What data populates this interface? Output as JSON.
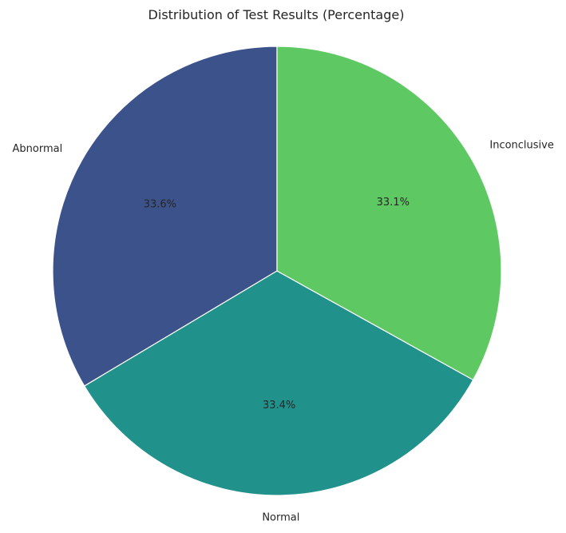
{
  "chart_data": {
    "type": "pie",
    "title": "Distribution of Test Results (Percentage)",
    "categories": [
      "Abnormal",
      "Normal",
      "Inconclusive"
    ],
    "values": [
      33.6,
      33.4,
      33.1
    ],
    "value_labels": [
      "33.6%",
      "33.4%",
      "33.1%"
    ],
    "colors": [
      "#3b528b",
      "#21918c",
      "#5ec962"
    ],
    "start_angle_deg": 90,
    "direction": "counterclockwise",
    "legend": "none",
    "grid": false
  }
}
